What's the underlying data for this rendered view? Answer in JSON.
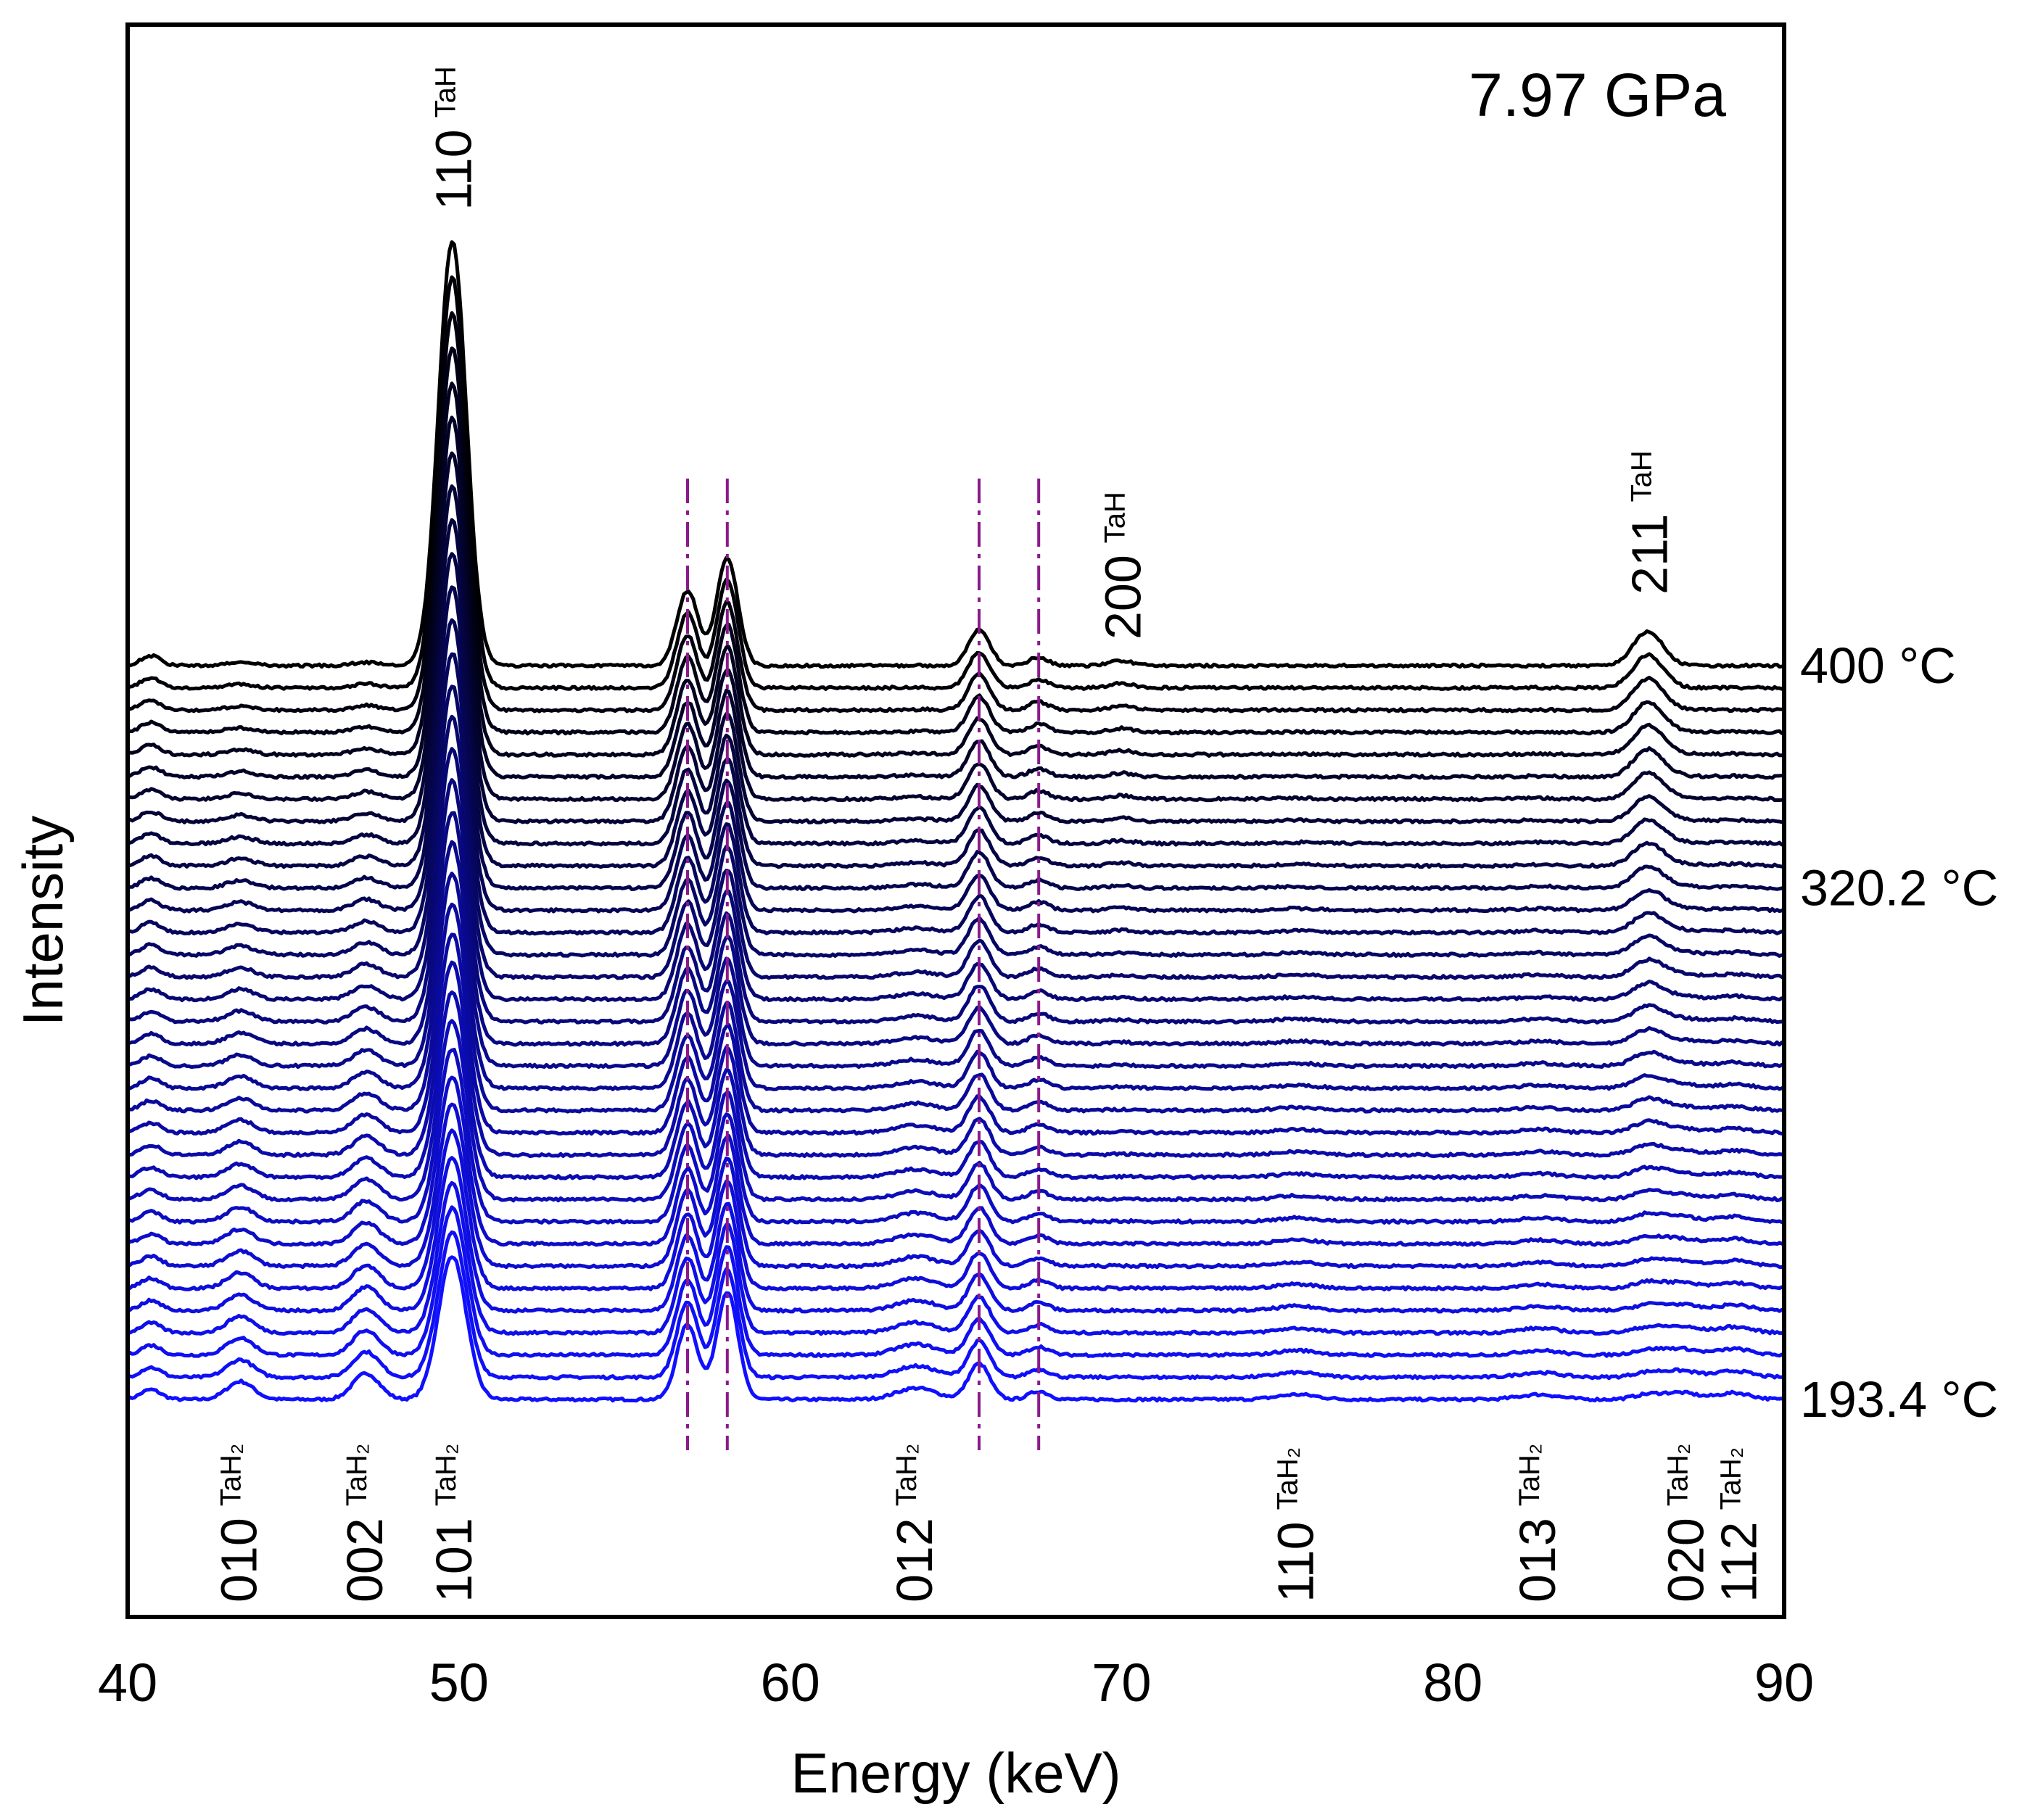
{
  "chart_data": {
    "type": "line",
    "title": "7.97 GPa",
    "xlabel": "Energy (keV)",
    "ylabel": "Intensity",
    "xlim": [
      40,
      90
    ],
    "xticks": [
      {
        "value": 40,
        "label": "40"
      },
      {
        "value": 50,
        "label": "50"
      },
      {
        "value": 60,
        "label": "60"
      },
      {
        "value": 70,
        "label": "70"
      },
      {
        "value": 80,
        "label": "80"
      },
      {
        "value": 90,
        "label": "90"
      }
    ],
    "grid": false,
    "series_count": 34,
    "series_offset": "stacked waterfall, lowest trace 193.4 °C to highest trace 400 °C",
    "temperature_labels": [
      {
        "label": "400 °C",
        "trace_index": 33
      },
      {
        "label": "320.2 °C",
        "trace_index": 23
      },
      {
        "label": "193.4 °C",
        "trace_index": 0
      }
    ],
    "color_low_temp": "#1010ff",
    "color_high_temp": "#000000",
    "reference_line_color": "#8a1a8a",
    "reference_lines_keV": [
      56.9,
      58.1,
      65.7,
      67.5
    ],
    "tah_peaks": [
      {
        "hkl": "110",
        "phase": "TaH",
        "energy": 49.8,
        "amplitude_top": 13.0,
        "amplitude_bottom": 4.4,
        "width": 0.42
      },
      {
        "hkl": "200",
        "phase": "TaH",
        "energy": 70.0,
        "amplitude_top": 0.15,
        "amplitude_bottom": 0.0,
        "width": 0.35
      },
      {
        "hkl": "211",
        "phase": "TaH",
        "energy": 85.9,
        "amplitude_top": 1.05,
        "amplitude_bottom": 0.15,
        "width": 0.45
      }
    ],
    "tah2_peaks": [
      {
        "hkl": "010",
        "phase": "TaH₂",
        "energy": 43.4,
        "amplitude_top": 0.1,
        "amplitude_bottom": 0.55,
        "width": 0.4
      },
      {
        "hkl": "002",
        "phase": "TaH₂",
        "energy": 47.2,
        "amplitude_top": 0.1,
        "amplitude_bottom": 0.8,
        "width": 0.4
      },
      {
        "hkl": "101",
        "phase": "TaH₂",
        "energy": 49.9,
        "amplitude_top": 0.0,
        "amplitude_bottom": 0.0,
        "width": 0.4
      },
      {
        "hkl": "012",
        "phase": "TaH₂",
        "energy": 63.8,
        "amplitude_top": 0.0,
        "amplitude_bottom": 0.35,
        "width": 0.6
      },
      {
        "hkl": "110",
        "phase": "TaH₂",
        "energy": 75.3,
        "amplitude_top": 0.0,
        "amplitude_bottom": 0.15,
        "width": 0.6
      },
      {
        "hkl": "013",
        "phase": "TaH₂",
        "energy": 82.6,
        "amplitude_top": 0.0,
        "amplitude_bottom": 0.15,
        "width": 0.6
      },
      {
        "hkl": "020",
        "phase": "TaH₂",
        "energy": 86.9,
        "amplitude_top": 0.0,
        "amplitude_bottom": 0.2,
        "width": 0.5
      },
      {
        "hkl": "112",
        "phase": "TaH₂",
        "energy": 88.5,
        "amplitude_top": 0.0,
        "amplitude_bottom": 0.2,
        "width": 0.5
      }
    ],
    "persistent_peaks": [
      {
        "energy": 56.9,
        "amplitude": 2.3,
        "width": 0.32
      },
      {
        "energy": 58.1,
        "amplitude": 3.3,
        "width": 0.32
      },
      {
        "energy": 65.7,
        "amplitude": 1.1,
        "width": 0.32
      },
      {
        "energy": 67.5,
        "amplitude": 0.25,
        "width": 0.3
      },
      {
        "energy": 40.7,
        "amplitude": 0.3,
        "width": 0.3
      }
    ]
  }
}
